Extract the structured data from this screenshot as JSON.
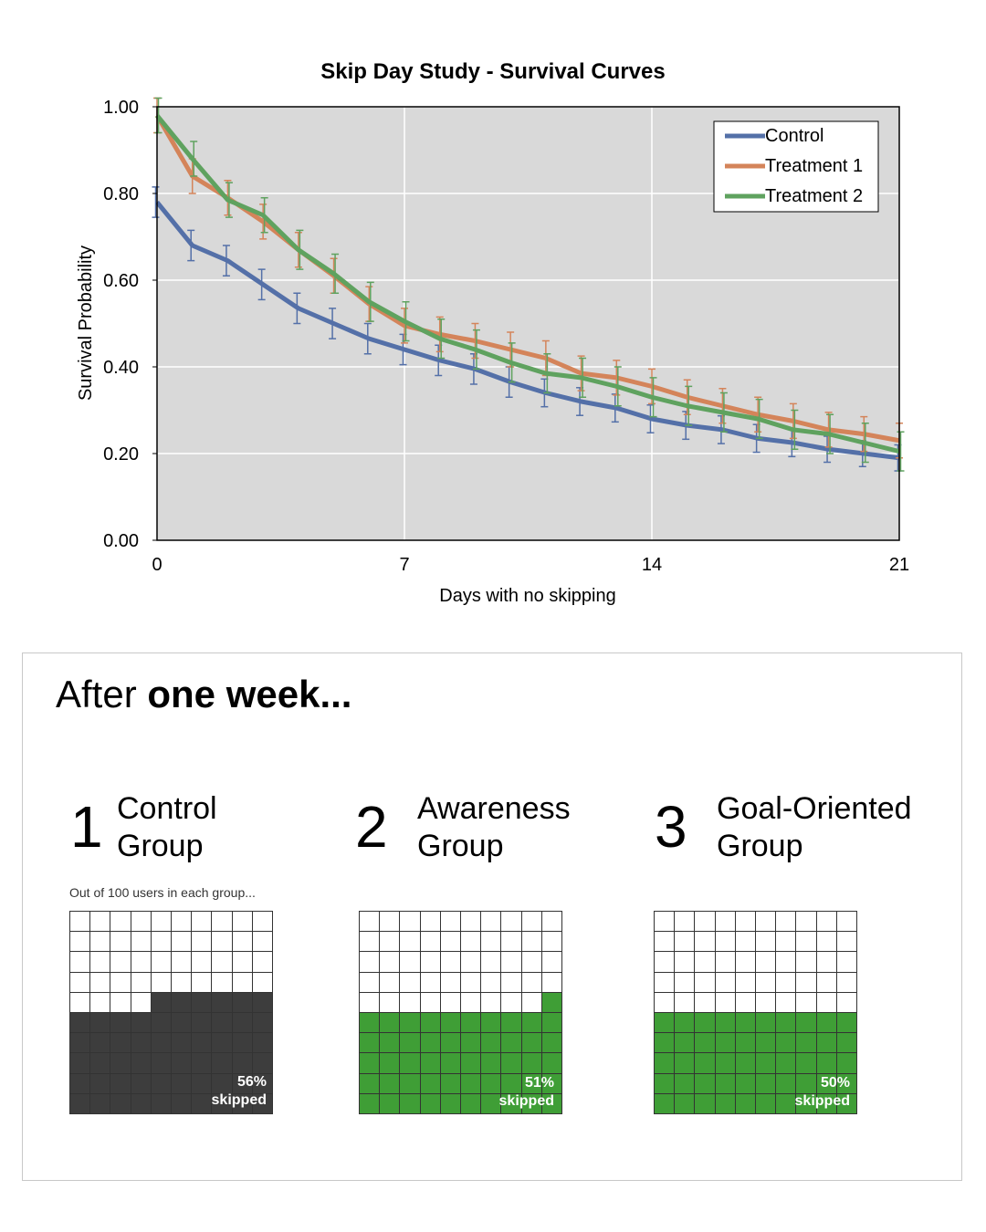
{
  "chart_data": {
    "type": "line",
    "title": "Skip Day Study - Survival Curves",
    "xlabel": "Days with no skipping",
    "ylabel": "Survival Probability",
    "xlim": [
      0,
      21
    ],
    "ylim": [
      0,
      1
    ],
    "x_ticks": [
      0,
      7,
      14,
      21
    ],
    "y_ticks": [
      "0.00",
      "0.20",
      "0.40",
      "0.60",
      "0.80",
      "1.00"
    ],
    "grid": true,
    "legend_position": "top-right",
    "error_bars": true,
    "x": [
      0,
      1,
      2,
      3,
      4,
      5,
      6,
      7,
      8,
      9,
      10,
      11,
      12,
      13,
      14,
      15,
      16,
      17,
      18,
      19,
      20,
      21
    ],
    "series": [
      {
        "name": "Control",
        "color": "#5470a8",
        "values": [
          0.78,
          0.68,
          0.645,
          0.59,
          0.535,
          0.5,
          0.465,
          0.44,
          0.415,
          0.395,
          0.365,
          0.34,
          0.32,
          0.305,
          0.28,
          0.265,
          0.255,
          0.235,
          0.225,
          0.21,
          0.2,
          0.19
        ],
        "errors": [
          0.035,
          0.035,
          0.035,
          0.035,
          0.035,
          0.035,
          0.035,
          0.035,
          0.035,
          0.035,
          0.035,
          0.032,
          0.032,
          0.032,
          0.032,
          0.032,
          0.032,
          0.032,
          0.032,
          0.03,
          0.03,
          0.03
        ]
      },
      {
        "name": "Treatment 1",
        "color": "#d4845a",
        "values": [
          0.98,
          0.84,
          0.79,
          0.735,
          0.67,
          0.61,
          0.545,
          0.495,
          0.475,
          0.46,
          0.44,
          0.42,
          0.385,
          0.375,
          0.355,
          0.33,
          0.31,
          0.29,
          0.275,
          0.255,
          0.245,
          0.23
        ],
        "errors": [
          0.04,
          0.04,
          0.04,
          0.04,
          0.04,
          0.04,
          0.04,
          0.04,
          0.04,
          0.04,
          0.04,
          0.04,
          0.04,
          0.04,
          0.04,
          0.04,
          0.04,
          0.04,
          0.04,
          0.04,
          0.04,
          0.04
        ]
      },
      {
        "name": "Treatment 2",
        "color": "#5fa25f",
        "values": [
          0.98,
          0.88,
          0.785,
          0.75,
          0.67,
          0.615,
          0.55,
          0.505,
          0.465,
          0.44,
          0.41,
          0.385,
          0.375,
          0.355,
          0.33,
          0.31,
          0.295,
          0.28,
          0.255,
          0.245,
          0.225,
          0.205
        ],
        "errors": [
          0.04,
          0.04,
          0.04,
          0.04,
          0.045,
          0.045,
          0.045,
          0.045,
          0.045,
          0.045,
          0.045,
          0.045,
          0.045,
          0.045,
          0.045,
          0.045,
          0.045,
          0.045,
          0.045,
          0.045,
          0.045,
          0.045
        ]
      }
    ]
  },
  "infographic": {
    "heading_prefix": "After ",
    "heading_bold": "one week...",
    "note": "Out of 100 users in each group...",
    "groups": [
      {
        "number": "1",
        "name_line1": "Control",
        "name_line2": "Group",
        "skipped": 56,
        "percent": "56%",
        "skipped_label": "skipped",
        "color": "#3d3d3d"
      },
      {
        "number": "2",
        "name_line1": "Awareness",
        "name_line2": "Group",
        "skipped": 51,
        "percent": "51%",
        "skipped_label": "skipped",
        "color": "#3f9e36"
      },
      {
        "number": "3",
        "name_line1": "Goal-Oriented",
        "name_line2": "Group",
        "skipped": 50,
        "percent": "50%",
        "skipped_label": "skipped",
        "color": "#3f9e36"
      }
    ]
  }
}
